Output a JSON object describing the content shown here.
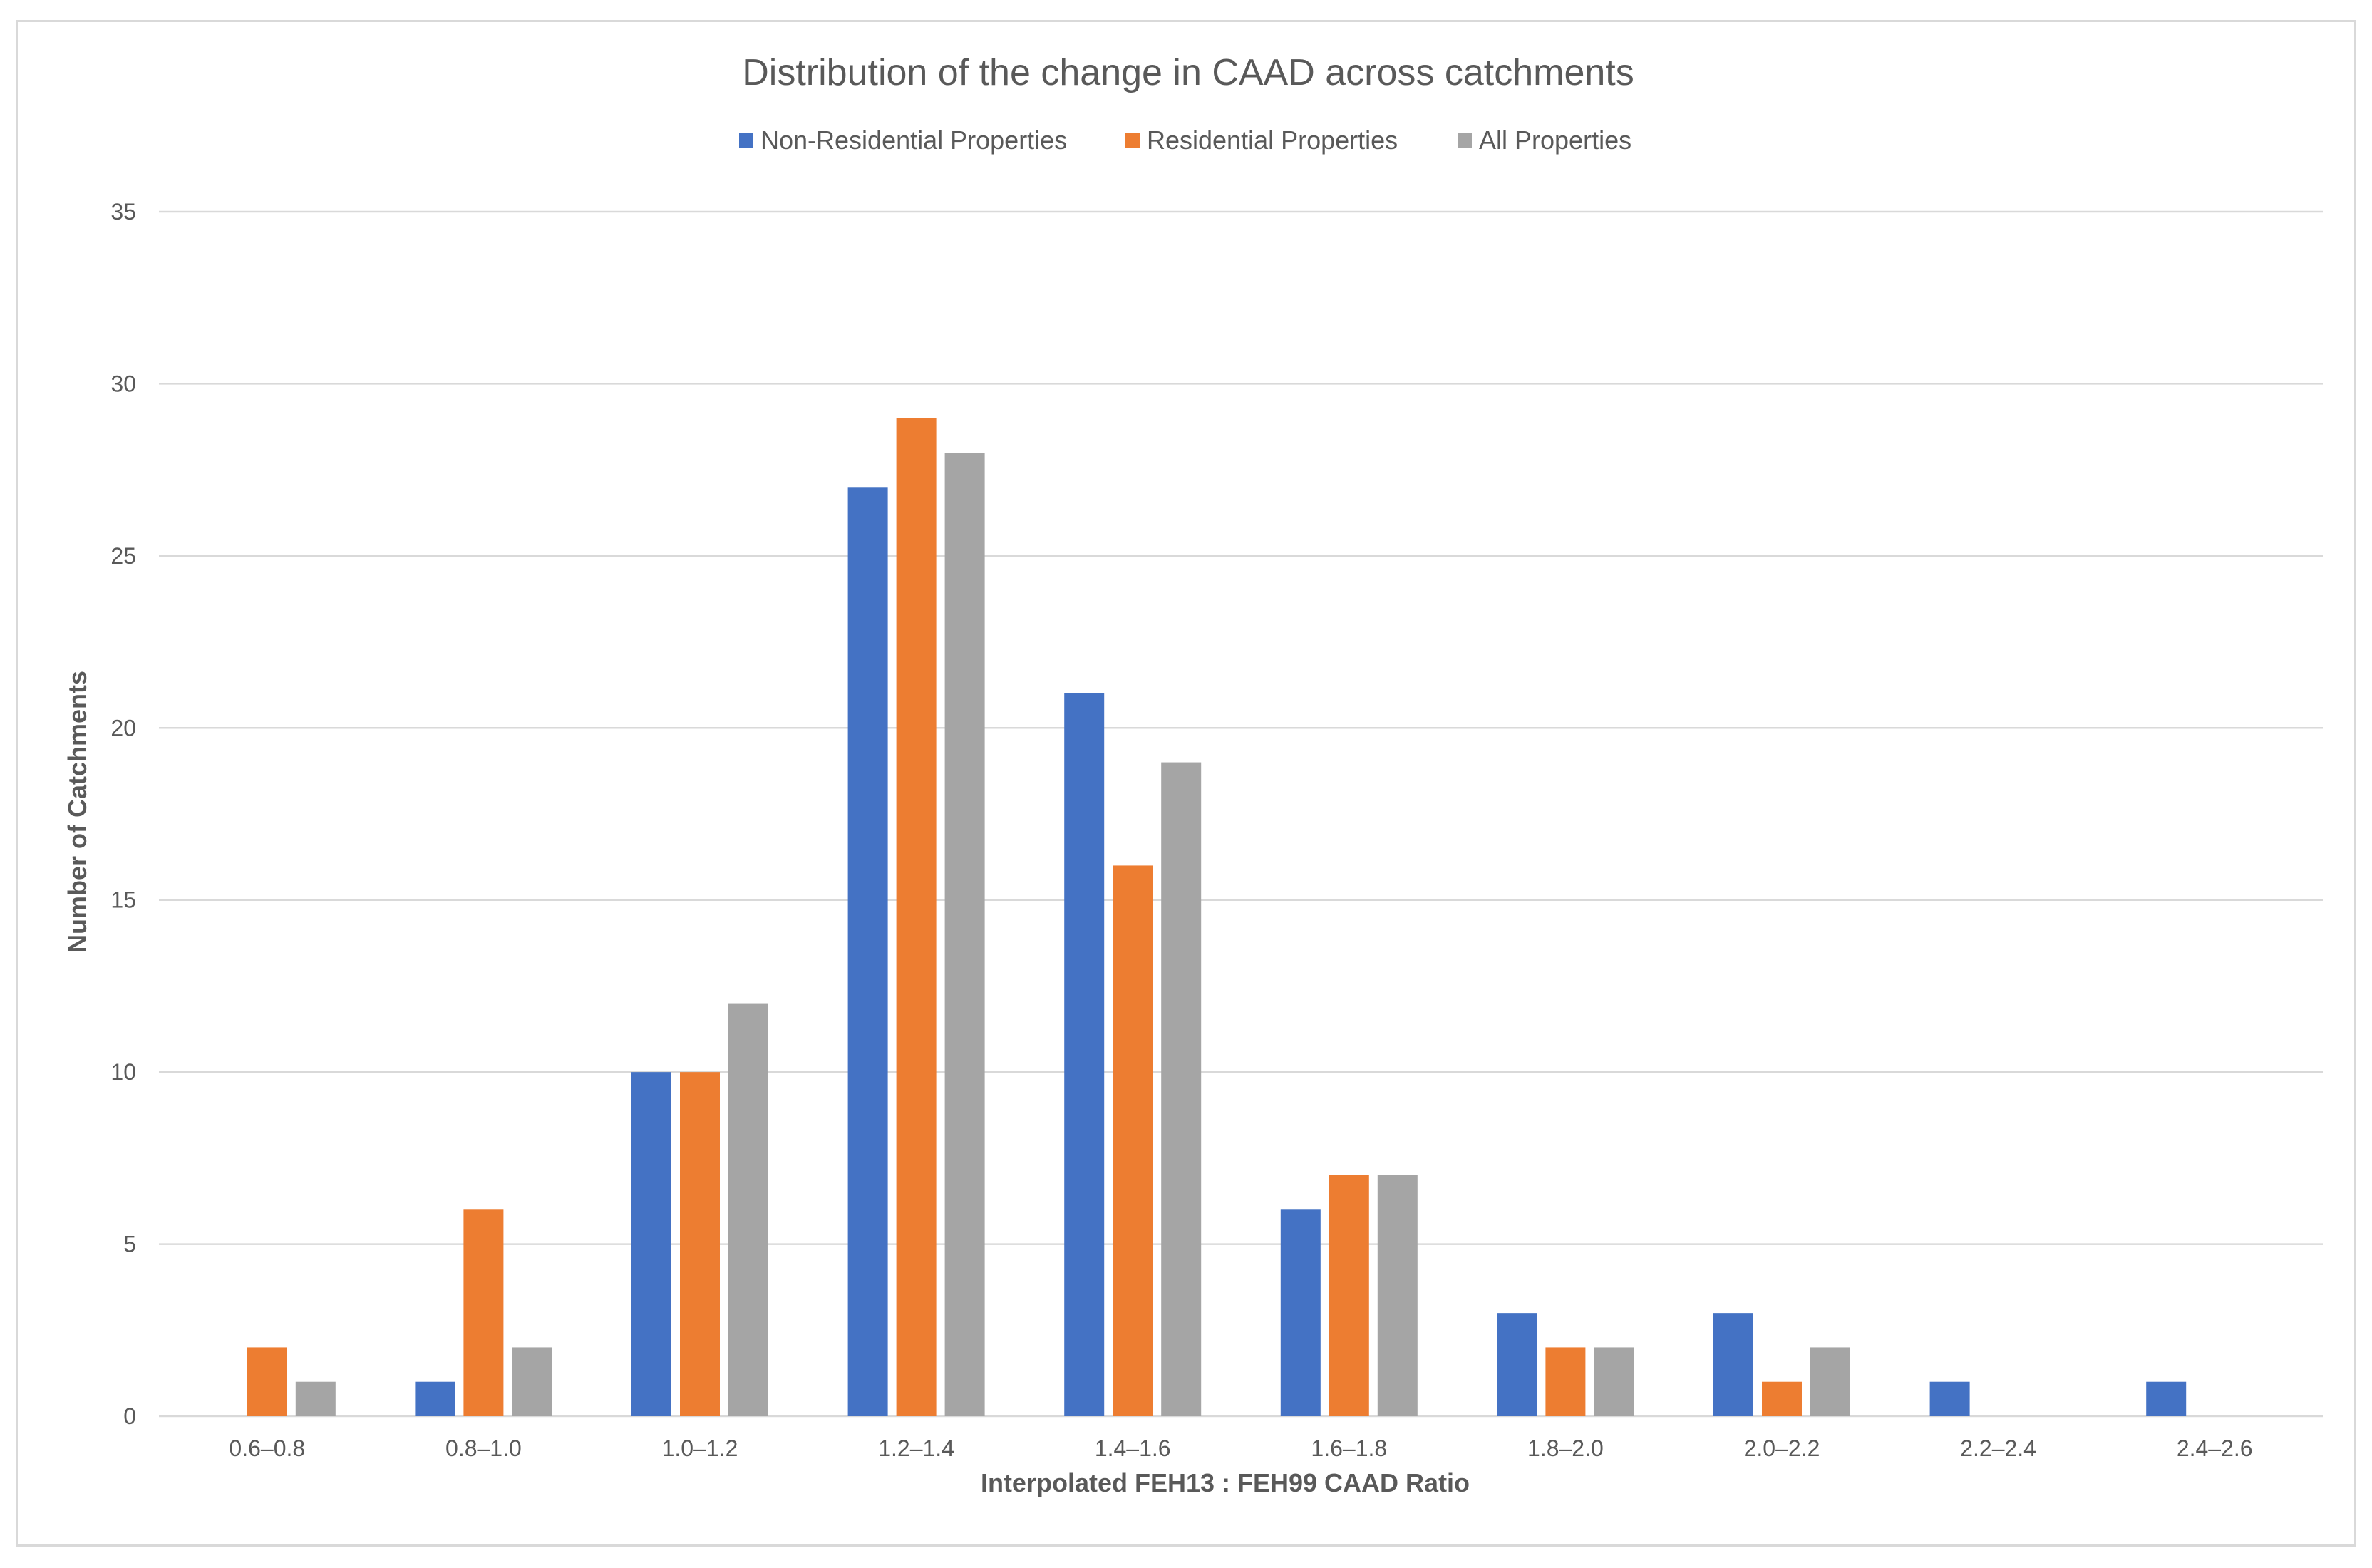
{
  "chart_data": {
    "type": "bar",
    "title": "Distribution of the change in CAAD across catchments",
    "xlabel": "Interpolated FEH13 : FEH99 CAAD Ratio",
    "ylabel": "Number of Catchments",
    "ylim": [
      0,
      35
    ],
    "yticks": [
      "0",
      "5",
      "10",
      "15",
      "20",
      "25",
      "30",
      "35"
    ],
    "grid": true,
    "legend_position": "top-center",
    "categories": [
      "0.6–0.8",
      "0.8–1.0",
      "1.0–1.2",
      "1.2–1.4",
      "1.4–1.6",
      "1.6–1.8",
      "1.8–2.0",
      "2.0–2.2",
      "2.2–2.4",
      "2.4–2.6"
    ],
    "series": [
      {
        "name": "Non-Residential Properties",
        "color": "#4472c4",
        "values": [
          0,
          1,
          10,
          27,
          21,
          6,
          3,
          3,
          1,
          1
        ]
      },
      {
        "name": "Residential Properties",
        "color": "#ed7d31",
        "values": [
          2,
          6,
          10,
          29,
          16,
          7,
          2,
          1,
          0,
          0
        ]
      },
      {
        "name": "All Properties",
        "color": "#a5a5a5",
        "values": [
          1,
          2,
          12,
          28,
          19,
          7,
          2,
          2,
          0,
          0
        ]
      }
    ]
  }
}
